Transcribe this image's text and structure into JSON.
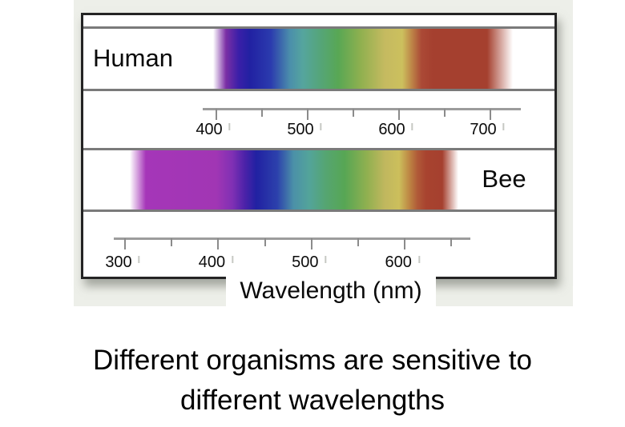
{
  "figure": {
    "human_label": "Human",
    "bee_label": "Bee",
    "wavelength_axis_label": "Wavelength (nm)",
    "human_axis": {
      "unit": "nm",
      "major_ticks": [
        400,
        500,
        600,
        700
      ],
      "minor_ticks": [
        450,
        550,
        650
      ]
    },
    "bee_axis": {
      "unit": "nm",
      "major_ticks": [
        300,
        400,
        500,
        600
      ],
      "minor_ticks": [
        350,
        450,
        550,
        650
      ]
    },
    "human_gradient": [
      [
        0,
        "#ffffff"
      ],
      [
        162,
        "#ffffff"
      ],
      [
        178,
        "#7b2fa5"
      ],
      [
        194,
        "#3a1fa8"
      ],
      [
        208,
        "#2121a2"
      ],
      [
        234,
        "#2b3bae"
      ],
      [
        258,
        "#4b8fab"
      ],
      [
        274,
        "#55a59e"
      ],
      [
        296,
        "#55a578"
      ],
      [
        318,
        "#58a754"
      ],
      [
        346,
        "#8fb04f"
      ],
      [
        376,
        "#c5ba60"
      ],
      [
        398,
        "#ccc05e"
      ],
      [
        410,
        "#bd8447"
      ],
      [
        422,
        "#ab4936"
      ],
      [
        436,
        "#a5402f"
      ],
      [
        504,
        "#a5402f"
      ],
      [
        536,
        "#ffffff"
      ],
      [
        585,
        "#ffffff"
      ]
    ],
    "bee_gradient": [
      [
        0,
        "#ffffff"
      ],
      [
        58,
        "#ffffff"
      ],
      [
        78,
        "#a536b8"
      ],
      [
        166,
        "#a136b4"
      ],
      [
        186,
        "#8030b4"
      ],
      [
        202,
        "#4a22a8"
      ],
      [
        216,
        "#2121a2"
      ],
      [
        242,
        "#2c41ac"
      ],
      [
        262,
        "#4b90a8"
      ],
      [
        282,
        "#53a49a"
      ],
      [
        302,
        "#55a572"
      ],
      [
        326,
        "#57a654"
      ],
      [
        354,
        "#90b050"
      ],
      [
        376,
        "#c0b75e"
      ],
      [
        394,
        "#ccbf5c"
      ],
      [
        408,
        "#bc8142"
      ],
      [
        417,
        "#b05a38"
      ],
      [
        428,
        "#a8432f"
      ],
      [
        448,
        "#a5402f"
      ],
      [
        468,
        "#ffffff"
      ],
      [
        585,
        "#ffffff"
      ]
    ]
  },
  "caption": {
    "line1": "Different organisms are sensitive to",
    "line2": "different wavelengths"
  },
  "chart_data": {
    "type": "bar",
    "subtype": "horizontal-spectrum-range",
    "title": "",
    "xlabel": "Wavelength (nm)",
    "series": [
      {
        "name": "Human",
        "sensitivity_range_nm": [
          400,
          722
        ],
        "axis_major_ticks_nm": [
          400,
          500,
          600,
          700
        ],
        "axis_minor_ticks_nm": [
          450,
          550,
          650
        ],
        "axis_line_range_nm": [
          386,
          734
        ]
      },
      {
        "name": "Bee",
        "sensitivity_range_nm": [
          305,
          657
        ],
        "axis_major_ticks_nm": [
          300,
          400,
          500,
          600
        ],
        "axis_minor_ticks_nm": [
          350,
          450,
          550,
          650
        ],
        "axis_line_range_nm": [
          288,
          670
        ]
      }
    ],
    "legend": "none",
    "caption": "Different organisms are sensitive to different wavelengths"
  }
}
